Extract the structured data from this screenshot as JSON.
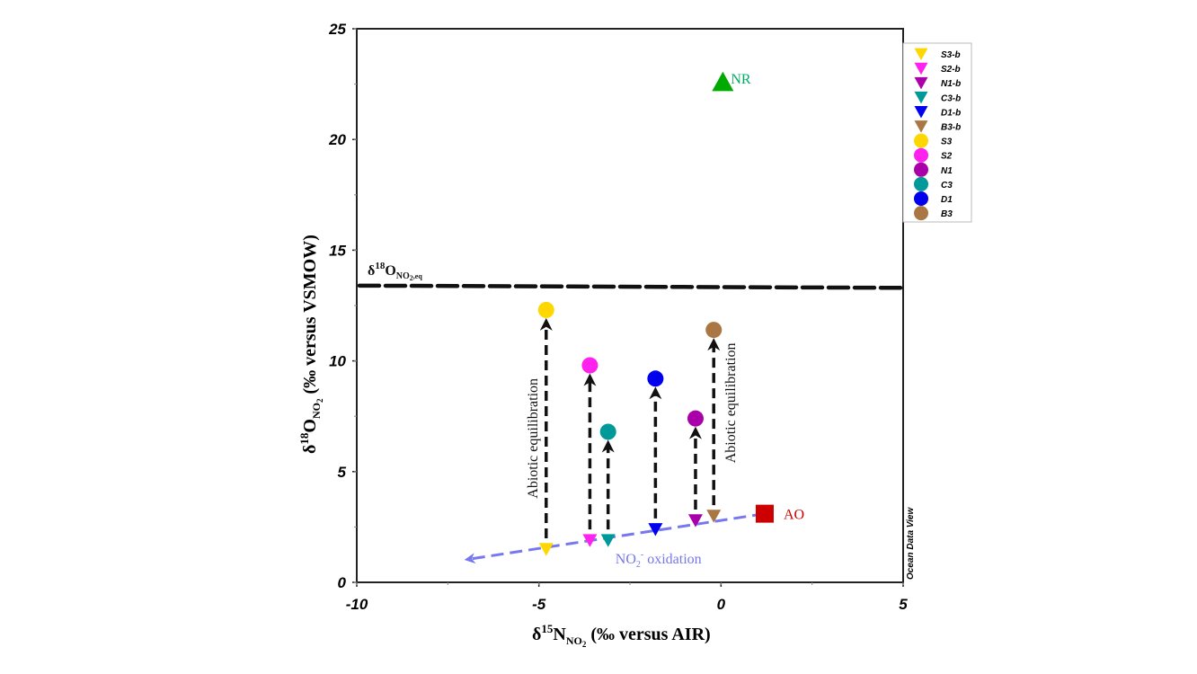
{
  "chart_data": {
    "type": "scatter",
    "title": "",
    "xlabel": {
      "main": "δ",
      "sup": "15",
      "mid": "N",
      "sub": "NO",
      "sub2": "2",
      "tail": " (‰ versus AIR)"
    },
    "ylabel": {
      "main": "δ",
      "sup": "18",
      "mid": "O",
      "sub": "NO",
      "sub2": "2",
      "tail": " (‰ versus VSMOW)"
    },
    "xlim": [
      -10,
      5
    ],
    "ylim": [
      0,
      25
    ],
    "xticks": [
      -10,
      -5,
      0,
      5
    ],
    "xtick_labels": [
      "-10",
      "-5",
      "0",
      "5"
    ],
    "yticks": [
      0,
      5,
      10,
      15,
      20,
      25
    ],
    "ytick_labels": [
      "0",
      "5",
      "10",
      "15",
      "20",
      "25"
    ],
    "grid": false,
    "legend_position": "right",
    "series": [
      {
        "name": "S3-b",
        "marker": "triangle-down",
        "color": "#FFD700",
        "x": -4.8,
        "y": 1.5
      },
      {
        "name": "S2-b",
        "marker": "triangle-down",
        "color": "#FF22EE",
        "x": -3.6,
        "y": 1.9
      },
      {
        "name": "N1-b",
        "marker": "triangle-down",
        "color": "#AA00AA",
        "x": -0.7,
        "y": 2.8
      },
      {
        "name": "C3-b",
        "marker": "triangle-down",
        "color": "#009999",
        "x": -3.1,
        "y": 1.9
      },
      {
        "name": "D1-b",
        "marker": "triangle-down",
        "color": "#0000EE",
        "x": -1.8,
        "y": 2.4
      },
      {
        "name": "B3-b",
        "marker": "triangle-down",
        "color": "#AA7744",
        "x": -0.2,
        "y": 3.0
      },
      {
        "name": "S3",
        "marker": "circle",
        "color": "#FFD700",
        "x": -4.8,
        "y": 12.3
      },
      {
        "name": "S2",
        "marker": "circle",
        "color": "#FF22EE",
        "x": -3.6,
        "y": 9.8
      },
      {
        "name": "N1",
        "marker": "circle",
        "color": "#AA00AA",
        "x": -0.7,
        "y": 7.4
      },
      {
        "name": "C3",
        "marker": "circle",
        "color": "#009999",
        "x": -3.1,
        "y": 6.8
      },
      {
        "name": "D1",
        "marker": "circle",
        "color": "#0000EE",
        "x": -1.8,
        "y": 9.2
      },
      {
        "name": "B3",
        "marker": "circle",
        "color": "#AA7744",
        "x": -0.2,
        "y": 11.4
      }
    ],
    "reference_points": [
      {
        "name": "NR",
        "marker": "triangle-up",
        "color": "#00AA00",
        "label_color": "#00AA66",
        "x": 0.05,
        "y": 22.6
      },
      {
        "name": "AO",
        "marker": "square",
        "color": "#CC0000",
        "label_color": "#CC0000",
        "x": 1.2,
        "y": 3.1
      }
    ],
    "equilibrium_line": {
      "label_main": "δ",
      "label_sup": "18",
      "label_mid": "O",
      "label_sub": "NO",
      "label_sub2": "2",
      "label_sub3": ",eq",
      "y_start": 13.4,
      "y_end": 13.3,
      "color": "#111111"
    },
    "equilibration_arrows": [
      {
        "from": "S3-b",
        "to": "S3"
      },
      {
        "from": "S2-b",
        "to": "S2"
      },
      {
        "from": "C3-b",
        "to": "C3"
      },
      {
        "from": "D1-b",
        "to": "D1"
      },
      {
        "from": "N1-b",
        "to": "N1"
      },
      {
        "from": "B3-b",
        "to": "B3"
      }
    ],
    "oxidation_arrow": {
      "from": [
        1.2,
        3.1
      ],
      "to": [
        -6.9,
        1.05
      ],
      "color": "#7777EE",
      "label_main": "NO",
      "label_sub": "2",
      "label_sup": "-",
      "label_tail": " oxidation"
    },
    "annotations": [
      {
        "text": "Abiotic equilibration",
        "near": "S3",
        "orientation": "vertical"
      },
      {
        "text": "Abiotic equilibration",
        "near": "B3",
        "orientation": "vertical"
      }
    ],
    "watermark": "Ocean Data View"
  }
}
